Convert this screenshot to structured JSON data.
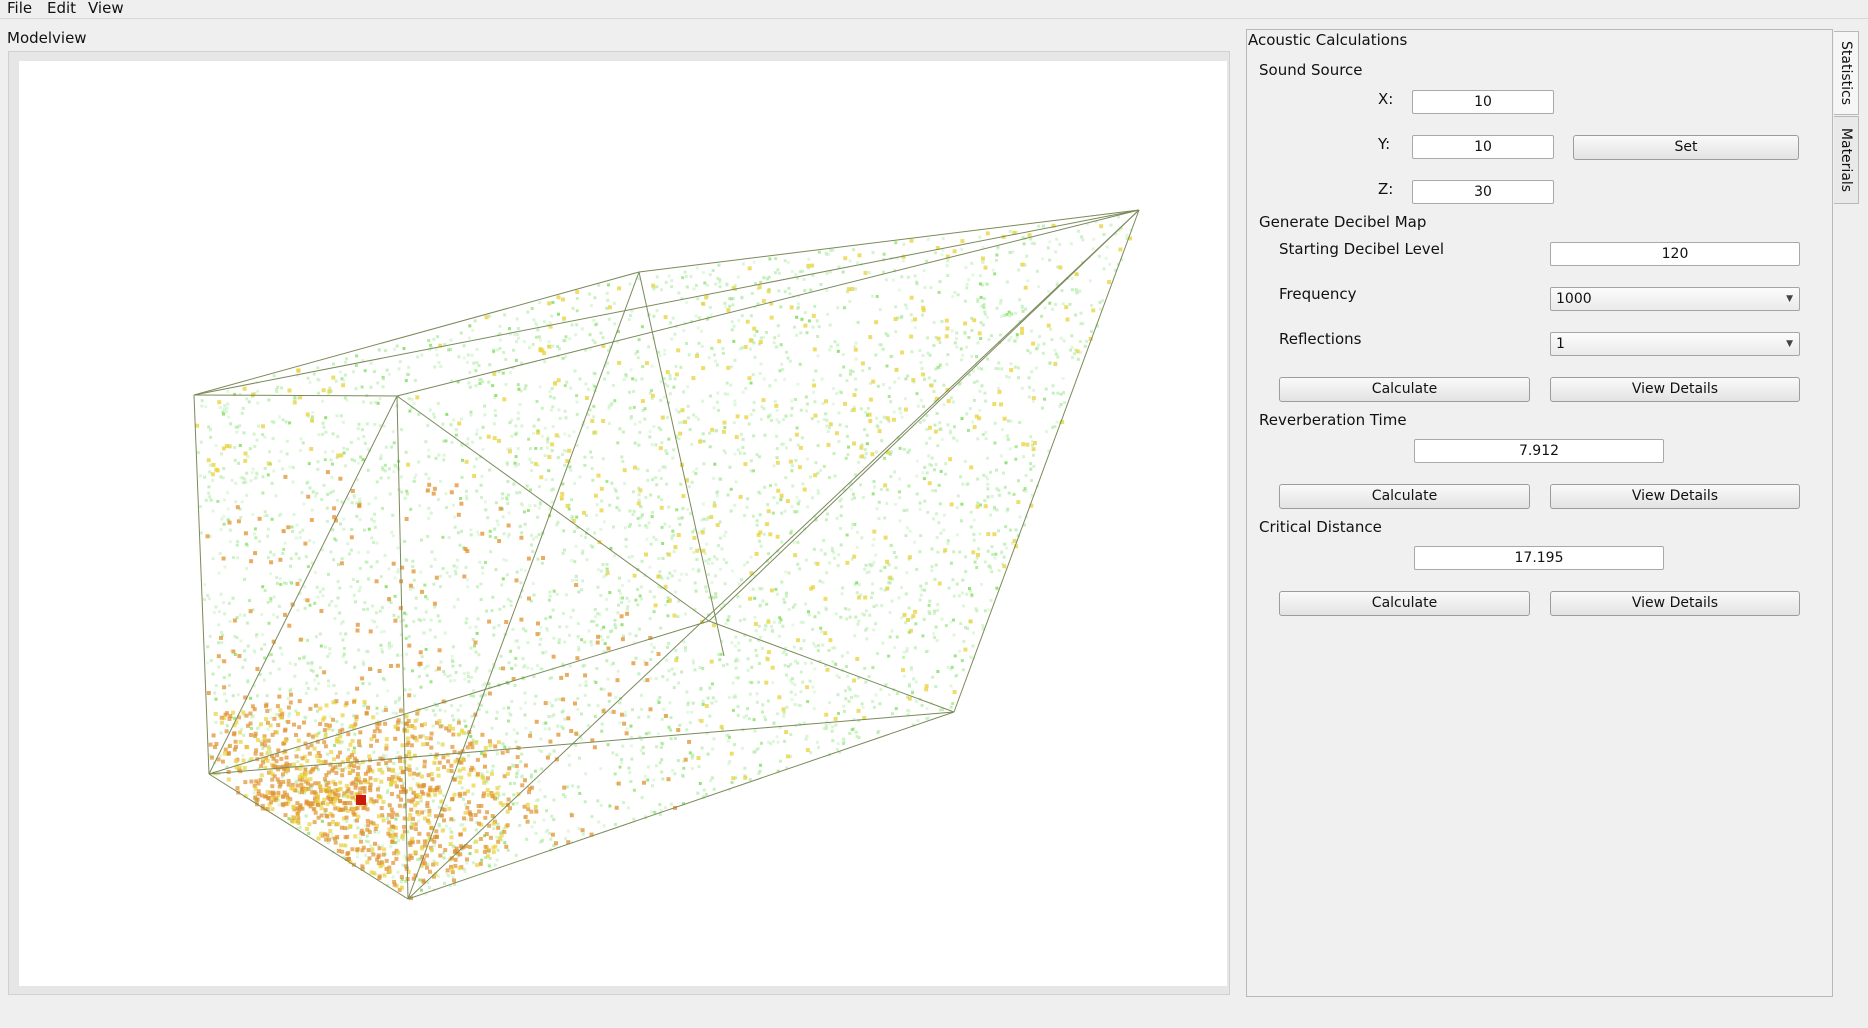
{
  "menubar": {
    "items": [
      "File",
      "Edit",
      "View"
    ]
  },
  "modelview": {
    "title": "Modelview"
  },
  "panel": {
    "title": "Acoustic Calculations",
    "tabs": [
      {
        "label": "Statistics",
        "active": true
      },
      {
        "label": "Materials",
        "active": false
      }
    ],
    "sound_source": {
      "heading": "Sound Source",
      "x_label": "X:",
      "x_value": "10",
      "y_label": "Y:",
      "y_value": "10",
      "z_label": "Z:",
      "z_value": "30",
      "set_label": "Set"
    },
    "decibel_map": {
      "heading": "Generate Decibel Map",
      "start_label": "Starting Decibel Level",
      "start_value": "120",
      "freq_label": "Frequency",
      "freq_value": "1000",
      "refl_label": "Reflections",
      "refl_value": "1",
      "calculate_label": "Calculate",
      "details_label": "View Details"
    },
    "reverb": {
      "heading": "Reverberation Time",
      "value": "7.912",
      "calculate_label": "Calculate",
      "details_label": "View Details"
    },
    "critical": {
      "heading": "Critical Distance",
      "value": "17.195",
      "calculate_label": "Calculate",
      "details_label": "View Details"
    }
  },
  "colors": {
    "edge": "#7a8a5a",
    "point_light": "#b8ecb0",
    "point_green": "#7ddc5a",
    "point_yellow": "#e8d23a",
    "point_orange": "#e0922e",
    "source_marker": "#cc1a0a"
  }
}
